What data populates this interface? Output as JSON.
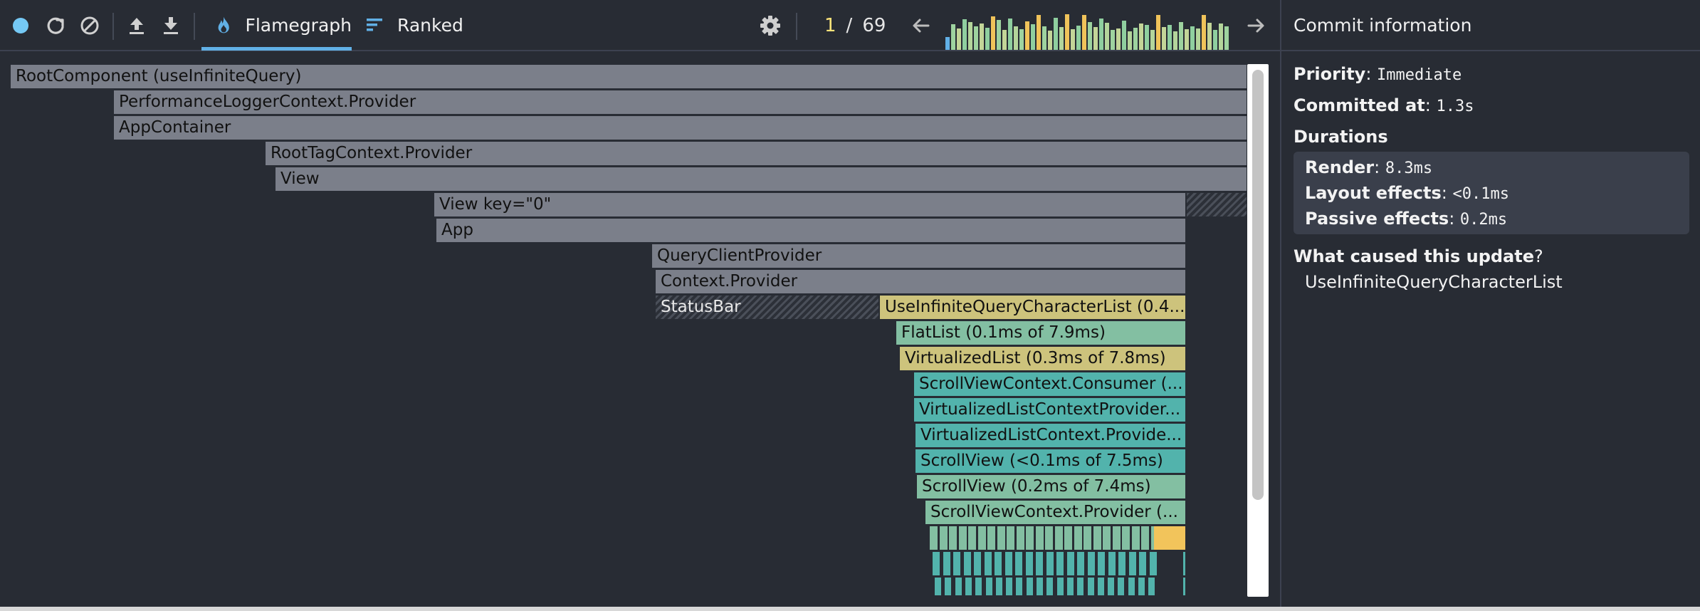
{
  "toolbar": {
    "icons": [
      "record-icon",
      "reload-icon",
      "clear-icon",
      "load-profile-icon",
      "save-profile-icon"
    ],
    "tabs": [
      {
        "label": "Flamegraph",
        "icon": "flame-icon",
        "active": true
      },
      {
        "label": "Ranked",
        "icon": "ranked-icon",
        "active": false
      }
    ],
    "settings_icon": "gear-icon",
    "commit_index": "1",
    "commit_separator": "/",
    "commit_total": "69",
    "prev_icon": "arrow-left-icon",
    "next_icon": "arrow-right-icon",
    "commit_bar_heights": [
      0.35,
      0.72,
      0.6,
      0.85,
      0.78,
      0.66,
      0.74,
      0.62,
      0.94,
      0.83,
      0.55,
      0.88,
      0.66,
      0.58,
      0.8,
      0.72,
      0.98,
      0.65,
      0.54,
      0.9,
      0.63,
      1.0,
      0.58,
      0.67,
      0.97,
      0.78,
      0.63,
      0.88,
      0.76,
      0.55,
      0.6,
      0.81,
      0.51,
      0.62,
      0.74,
      0.7,
      0.57,
      0.97,
      0.64,
      0.7,
      0.52,
      0.78,
      0.58,
      0.65,
      0.6,
      0.98,
      0.76,
      0.55,
      0.74,
      0.66
    ]
  },
  "colors": {
    "background": "#282c34",
    "accent": "#61b0e6",
    "commit_selected": "#61b0e6",
    "gray": "#7b7f8a",
    "yellow": "#cdc37c",
    "green": "#83bfa2",
    "teal": "#52b3ac",
    "orange": "#f2c45b"
  },
  "flamegraph": {
    "nodes": [
      {
        "label": "RootComponent (useInfiniteQuery)"
      },
      {
        "label": "PerformanceLoggerContext.Provider"
      },
      {
        "label": "AppContainer"
      },
      {
        "label": "RootTagContext.Provider"
      },
      {
        "label": "View"
      },
      {
        "label": "View key=\"0\""
      },
      {
        "label": "App"
      },
      {
        "label": "QueryClientProvider"
      },
      {
        "label": "Context.Provider"
      },
      {
        "label": "StatusBar"
      },
      {
        "label": "UseInfiniteQueryCharacterList (0.4..."
      },
      {
        "label": "FlatList (0.1ms of 7.9ms)"
      },
      {
        "label": "VirtualizedList (0.3ms of 7.8ms)"
      },
      {
        "label": "ScrollViewContext.Consumer (..."
      },
      {
        "label": "VirtualizedListContextProvider..."
      },
      {
        "label": "VirtualizedListContext.Provide..."
      },
      {
        "label": "ScrollView (<0.1ms of 7.5ms)"
      },
      {
        "label": "ScrollView (0.2ms of 7.4ms)"
      },
      {
        "label": "ScrollViewContext.Provider (..."
      }
    ]
  },
  "panel": {
    "title": "Commit information",
    "priority_label": "Priority",
    "priority_value": "Immediate",
    "committed_label": "Committed at",
    "committed_value": "1.3s",
    "durations_label": "Durations",
    "render_label": "Render",
    "render_value": "8.3ms",
    "layout_label": "Layout effects",
    "layout_value": "<0.1ms",
    "passive_label": "Passive effects",
    "passive_value": "0.2ms",
    "cause_label": "What caused this update",
    "cause_mark": "?",
    "cause_value": "UseInfiniteQueryCharacterList"
  }
}
